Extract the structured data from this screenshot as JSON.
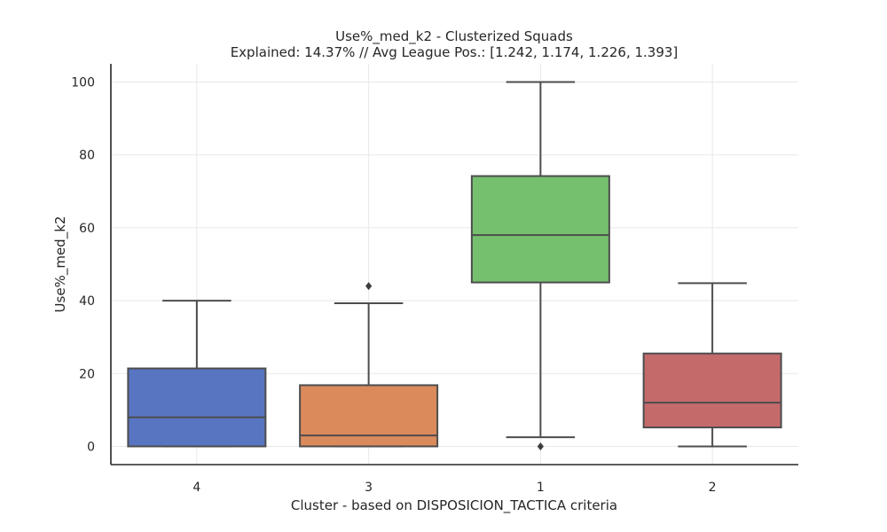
{
  "chart_data": {
    "type": "box",
    "title": "Use%_med_k2 - Clusterized Squads",
    "subtitle": "Explained: 14.37% // Avg League Pos.: [1.242, 1.174, 1.226, 1.393]",
    "xlabel": "Cluster - based on DISPOSICION_TACTICA criteria",
    "ylabel": "Use%_med_k2",
    "ylim": [
      -5,
      105
    ],
    "yticks": [
      0,
      20,
      40,
      60,
      80,
      100
    ],
    "grid": true,
    "categories": [
      "4",
      "3",
      "1",
      "2"
    ],
    "boxes": [
      {
        "category": "4",
        "whisker_low": 0,
        "q1": 0,
        "median": 8,
        "q3": 21.4,
        "whisker_high": 40,
        "outliers": [],
        "color": "#5875c2"
      },
      {
        "category": "3",
        "whisker_low": 0,
        "q1": 0,
        "median": 3,
        "q3": 16.8,
        "whisker_high": 39.3,
        "outliers": [
          44
        ],
        "color": "#db8a5c"
      },
      {
        "category": "1",
        "whisker_low": 2.5,
        "q1": 45,
        "median": 58,
        "q3": 74.2,
        "whisker_high": 100,
        "outliers": [
          0
        ],
        "color": "#75c06e"
      },
      {
        "category": "2",
        "whisker_low": 0,
        "q1": 5.2,
        "median": 12,
        "q3": 25.5,
        "whisker_high": 44.8,
        "outliers": [],
        "color": "#c56a6b"
      }
    ]
  }
}
